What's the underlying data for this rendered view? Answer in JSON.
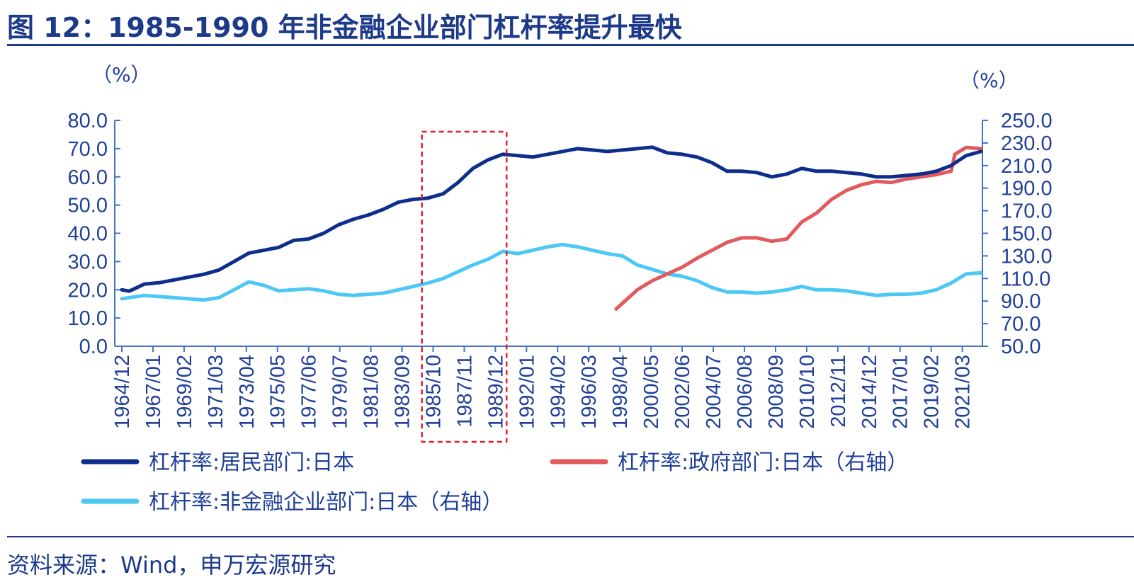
{
  "title": "图 12：1985-1990 年非金融企业部门杠杆率提升最快",
  "source": "资料来源：Wind，申万宏源研究",
  "colors": {
    "household": "#0d2e8c",
    "government": "#e05a5e",
    "corporate": "#4dc8f5",
    "axis": "#4472c4",
    "text": "#1f3f99",
    "highlight": "#e0202a"
  },
  "chart_data": {
    "type": "line",
    "left_unit": "（%）",
    "right_unit": "（%）",
    "left_axis": {
      "ylim": [
        0,
        80
      ],
      "ticks": [
        "0.0",
        "10.0",
        "20.0",
        "30.0",
        "40.0",
        "50.0",
        "60.0",
        "70.0",
        "80.0"
      ]
    },
    "right_axis": {
      "ylim": [
        50,
        250
      ],
      "ticks": [
        "50.0",
        "70.0",
        "90.0",
        "110.0",
        "130.0",
        "150.0",
        "170.0",
        "190.0",
        "210.0",
        "230.0",
        "250.0"
      ]
    },
    "x_range": [
      "1964/12",
      "2022/06"
    ],
    "x_ticks": [
      "1964/12",
      "1967/01",
      "1969/02",
      "1971/03",
      "1973/04",
      "1975/05",
      "1977/06",
      "1979/07",
      "1981/08",
      "1983/09",
      "1985/10",
      "1987/11",
      "1989/12",
      "1992/01",
      "1994/02",
      "1996/03",
      "1998/04",
      "2000/05",
      "2002/06",
      "2004/07",
      "2006/08",
      "2008/09",
      "2010/10",
      "2012/11",
      "2014/12",
      "2017/01",
      "2019/02",
      "2021/03"
    ],
    "highlight_range": [
      "1985/01",
      "1990/09"
    ],
    "legend_position": "bottom",
    "series": [
      {
        "name": "杠杆率:居民部门:日本",
        "axis": "left",
        "color_key": "household",
        "x": [
          "1964/12",
          "1965/06",
          "1966/06",
          "1967/06",
          "1968/06",
          "1969/06",
          "1970/06",
          "1971/06",
          "1972/06",
          "1973/06",
          "1974/06",
          "1975/06",
          "1976/06",
          "1977/06",
          "1978/06",
          "1979/06",
          "1980/06",
          "1981/06",
          "1982/06",
          "1983/06",
          "1984/06",
          "1985/06",
          "1986/06",
          "1987/06",
          "1988/06",
          "1989/06",
          "1990/06",
          "1991/06",
          "1992/06",
          "1993/06",
          "1994/06",
          "1995/06",
          "1996/06",
          "1997/06",
          "1998/06",
          "1999/06",
          "2000/06",
          "2001/06",
          "2002/06",
          "2003/06",
          "2004/06",
          "2005/06",
          "2006/06",
          "2007/06",
          "2008/06",
          "2009/06",
          "2010/06",
          "2011/06",
          "2012/06",
          "2013/06",
          "2014/06",
          "2015/06",
          "2016/06",
          "2017/06",
          "2018/06",
          "2019/06",
          "2020/06",
          "2021/06",
          "2022/06"
        ],
        "values": [
          20,
          19.5,
          22,
          22.5,
          23.5,
          24.5,
          25.5,
          27,
          30,
          33,
          34,
          35,
          37.5,
          38,
          40,
          43,
          45,
          46.5,
          48.5,
          51,
          52,
          52.5,
          54,
          58,
          63,
          66,
          68,
          67.5,
          67,
          68,
          69,
          70,
          69.5,
          69,
          69.5,
          70,
          70.5,
          68.5,
          68,
          67,
          65,
          62,
          62,
          61.5,
          60,
          61,
          63,
          62,
          62,
          61.5,
          61,
          60,
          60,
          60.5,
          61,
          62,
          64,
          67.5,
          69
        ]
      },
      {
        "name": "杠杆率:政府部门:日本（右轴）",
        "axis": "right",
        "color_key": "government",
        "x": [
          "1998/01",
          "1998/06",
          "1999/06",
          "2000/06",
          "2001/06",
          "2002/06",
          "2003/06",
          "2004/06",
          "2005/06",
          "2006/06",
          "2007/06",
          "2008/06",
          "2009/06",
          "2010/06",
          "2011/06",
          "2012/06",
          "2013/06",
          "2014/06",
          "2015/06",
          "2016/06",
          "2017/06",
          "2018/06",
          "2019/06",
          "2020/06",
          "2020/09",
          "2021/06",
          "2022/06"
        ],
        "values": [
          83,
          88,
          100,
          108,
          114,
          120,
          128,
          135,
          142,
          146,
          146,
          143,
          145,
          160,
          168,
          180,
          188,
          193,
          196,
          195,
          198,
          200,
          202,
          205,
          220,
          226,
          225
        ]
      },
      {
        "name": "杠杆率:非金融企业部门:日本（右轴）",
        "axis": "right",
        "color_key": "corporate",
        "x": [
          "1964/12",
          "1965/06",
          "1966/06",
          "1967/06",
          "1968/06",
          "1969/06",
          "1970/06",
          "1971/06",
          "1972/06",
          "1973/06",
          "1974/06",
          "1975/06",
          "1976/06",
          "1977/06",
          "1978/06",
          "1979/06",
          "1980/06",
          "1981/06",
          "1982/06",
          "1983/06",
          "1984/06",
          "1985/06",
          "1986/06",
          "1987/06",
          "1988/06",
          "1989/06",
          "1990/06",
          "1991/06",
          "1992/06",
          "1993/06",
          "1994/06",
          "1995/06",
          "1996/06",
          "1997/06",
          "1998/06",
          "1999/06",
          "2000/06",
          "2001/06",
          "2002/06",
          "2003/06",
          "2004/06",
          "2005/06",
          "2006/06",
          "2007/06",
          "2008/06",
          "2009/06",
          "2010/06",
          "2011/06",
          "2012/06",
          "2013/06",
          "2014/06",
          "2015/06",
          "2016/06",
          "2017/06",
          "2018/06",
          "2019/06",
          "2020/06",
          "2021/06",
          "2022/06"
        ],
        "values": [
          92,
          93,
          95,
          94,
          93,
          92,
          91,
          93,
          100,
          107,
          104,
          99,
          100,
          101,
          99,
          96,
          95,
          96,
          97,
          100,
          103,
          106,
          110,
          116,
          122,
          127,
          134,
          132,
          135,
          138,
          140,
          138,
          135,
          132,
          130,
          122,
          118,
          114,
          112,
          108,
          102,
          98,
          98,
          97,
          98,
          100,
          103,
          100,
          100,
          99,
          97,
          95,
          96,
          96,
          97,
          100,
          106,
          114,
          115
        ]
      }
    ]
  }
}
